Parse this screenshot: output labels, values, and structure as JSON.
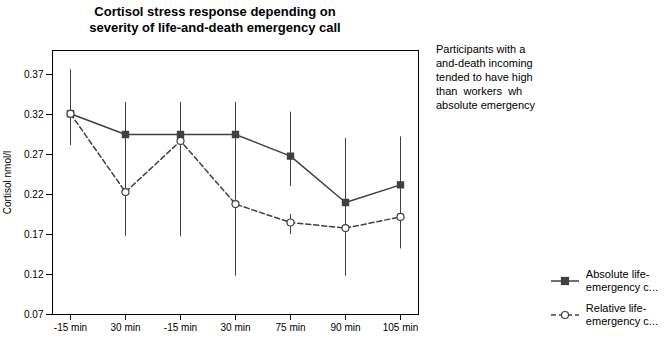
{
  "chart_data": {
    "type": "line",
    "title": "Cortisol stress response depending on\nseverity of life-and-death emergency call",
    "ylabel": "Cortisol nmol/l",
    "categories": [
      "-15 min",
      "30 min",
      "-15 min",
      "30 min",
      "75 min",
      "90 min",
      "105 min"
    ],
    "series": [
      {
        "name": "Absolute life-\nemergency c...",
        "color": "#404040",
        "marker": "filled square",
        "line_style": "solid",
        "values": [
          0.321,
          0.295,
          0.295,
          0.295,
          0.268,
          0.21,
          0.232
        ],
        "yerr_low": [
          0.04,
          0.08,
          0.075,
          0.075,
          0.038,
          0.06,
          0.055
        ],
        "yerr_high": [
          0.055,
          0.04,
          0.04,
          0.04,
          0.055,
          0.08,
          0.06
        ]
      },
      {
        "name": "Relative life-\nemergency c...",
        "color": "#404040",
        "marker": "open circle",
        "line_style": "dashed",
        "values": [
          0.321,
          0.223,
          0.287,
          0.208,
          0.185,
          0.178,
          0.192
        ],
        "yerr_low": [
          0.0,
          0.055,
          0.12,
          0.09,
          0.015,
          0.06,
          0.04
        ],
        "yerr_high": [
          0.0,
          0.05,
          0.01,
          0.08,
          0.01,
          0.008,
          0.09
        ]
      }
    ],
    "ylim": [
      0.07,
      0.4
    ],
    "yticks": [
      0.07,
      0.12,
      0.17,
      0.22,
      0.27,
      0.32,
      0.37
    ],
    "annotations": [
      "Participants with a\nand-death incoming\ntended to have high\nthan  workers  wh\nabsolute emergency"
    ],
    "legend": "lower right",
    "grid": false
  }
}
